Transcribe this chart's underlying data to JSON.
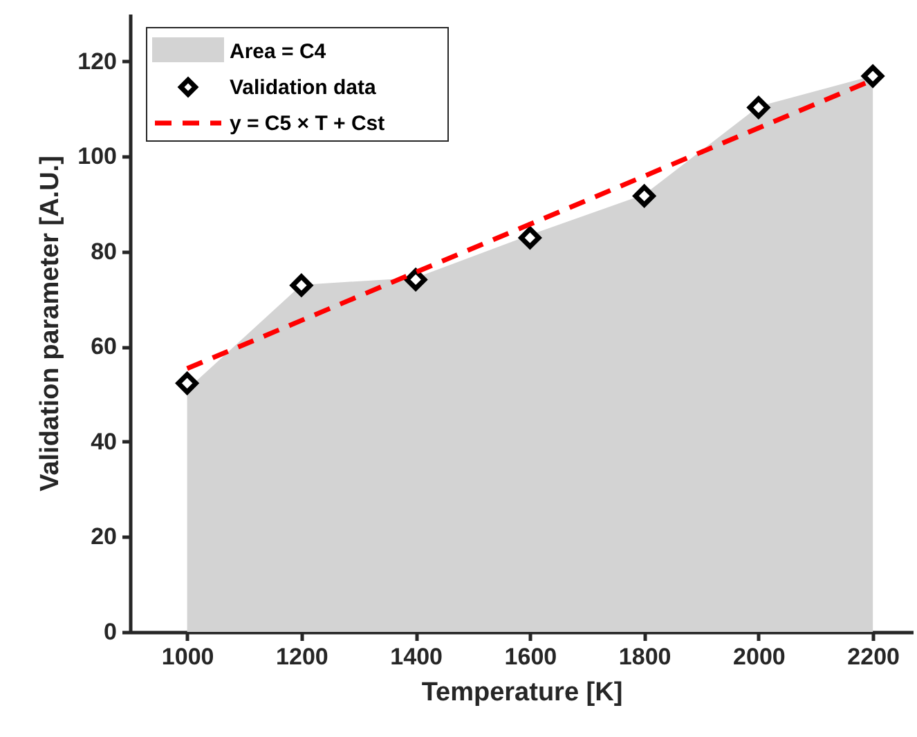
{
  "chart_data": {
    "type": "area",
    "xlabel": "Temperature [K]",
    "ylabel": "Validation parameter [A.U.]",
    "x": [
      1000,
      1200,
      1400,
      1600,
      1800,
      2000,
      2200
    ],
    "series": [
      {
        "name": "Area = C4",
        "color": "#d3d3d3",
        "values": [
          51,
          73,
          74.5,
          83.5,
          92,
          110.5,
          117
        ]
      },
      {
        "name": "Validation data",
        "type": "scatter",
        "color": "#000000",
        "marker": "diamond",
        "values": [
          52.3,
          72.9,
          74.1,
          82.9,
          91.7,
          110.3,
          116.9
        ]
      },
      {
        "name": "y = C5 × T + Cst",
        "type": "line",
        "color": "#ff0000",
        "line_style": "dashed",
        "x": [
          1000,
          2200
        ],
        "values": [
          55.4,
          116.1
        ]
      }
    ],
    "xlim": [
      900,
      2270
    ],
    "xticks": [
      1000,
      1200,
      1400,
      1600,
      1800,
      2000,
      2200
    ],
    "ylim": [
      0,
      130
    ],
    "yticks": [
      0,
      20,
      40,
      60,
      80,
      100,
      120
    ],
    "grid": false,
    "legend": "top left"
  }
}
